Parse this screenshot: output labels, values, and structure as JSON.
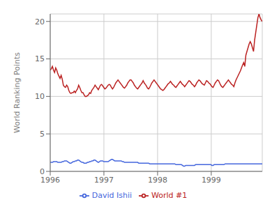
{
  "chart_data": {
    "type": "line",
    "ylabel": "World Ranking Points",
    "xlim": [
      1996.0,
      1999.95
    ],
    "ylim": [
      0,
      21
    ],
    "xticks": [
      1996,
      1997,
      1998,
      1999
    ],
    "yticks": [
      0,
      5,
      10,
      15,
      20
    ],
    "grid": true,
    "legend": "bottom",
    "x": [
      1996,
      1996.0204,
      1996.0407,
      1996.0611,
      1996.0814,
      1996.1018,
      1996.1222,
      1996.1425,
      1996.1629,
      1996.1832,
      1996.2036,
      1996.224,
      1996.2443,
      1996.2647,
      1996.2851,
      1996.3054,
      1996.3258,
      1996.3461,
      1996.3665,
      1996.3869,
      1996.4072,
      1996.4276,
      1996.4479,
      1996.4683,
      1996.4887,
      1996.509,
      1996.5294,
      1996.5497,
      1996.5701,
      1996.5905,
      1996.6108,
      1996.6312,
      1996.6515,
      1996.6719,
      1996.6923,
      1996.7126,
      1996.733,
      1996.7534,
      1996.7737,
      1996.7941,
      1996.8144,
      1996.8348,
      1996.8552,
      1996.8755,
      1996.8959,
      1996.9162,
      1996.9366,
      1996.957,
      1996.9773,
      1996.9977,
      1997.018,
      1997.0384,
      1997.0588,
      1997.0791,
      1997.0995,
      1997.1198,
      1997.1402,
      1997.1606,
      1997.1809,
      1997.2013,
      1997.2216,
      1997.242,
      1997.2624,
      1997.2827,
      1997.3031,
      1997.3235,
      1997.3438,
      1997.3642,
      1997.3845,
      1997.4049,
      1997.4253,
      1997.4456,
      1997.466,
      1997.4863,
      1997.5067,
      1997.5271,
      1997.5474,
      1997.5678,
      1997.5881,
      1997.6085,
      1997.6289,
      1997.6492,
      1997.6696,
      1997.6899,
      1997.7103,
      1997.7307,
      1997.751,
      1997.7714,
      1997.7918,
      1997.8121,
      1997.8325,
      1997.8528,
      1997.8732,
      1997.8936,
      1997.9139,
      1997.9343,
      1997.9546,
      1997.975,
      1997.9954,
      1998.0157,
      1998.0361,
      1998.0564,
      1998.0768,
      1998.0972,
      1998.1175,
      1998.1379,
      1998.1582,
      1998.1786,
      1998.199,
      1998.2193,
      1998.2397,
      1998.2601,
      1998.2804,
      1998.3008,
      1998.3211,
      1998.3415,
      1998.3619,
      1998.3822,
      1998.4026,
      1998.4229,
      1998.4433,
      1998.4637,
      1998.484,
      1998.5044,
      1998.5247,
      1998.5451,
      1998.5655,
      1998.5858,
      1998.6062,
      1998.6265,
      1998.6469,
      1998.6673,
      1998.6876,
      1998.708,
      1998.7284,
      1998.7487,
      1998.7691,
      1998.7894,
      1998.8098,
      1998.8302,
      1998.8505,
      1998.8709,
      1998.8912,
      1998.9116,
      1998.932,
      1998.9523,
      1998.9727,
      1998.993,
      1999.0134,
      1999.0338,
      1999.0541,
      1999.0745,
      1999.0948,
      1999.1152,
      1999.1356,
      1999.1559,
      1999.1763,
      1999.1966,
      1999.217,
      1999.2374,
      1999.2577,
      1999.2781,
      1999.2985,
      1999.3188,
      1999.3392,
      1999.3595,
      1999.3799,
      1999.4003,
      1999.4206,
      1999.441,
      1999.4613,
      1999.4817,
      1999.5021,
      1999.5224,
      1999.5428,
      1999.5631,
      1999.5835,
      1999.6039,
      1999.6242,
      1999.6446,
      1999.6649,
      1999.6853,
      1999.7057,
      1999.726,
      1999.7464,
      1999.7668,
      1999.7871,
      1999.8075,
      1999.8278,
      1999.8482,
      1999.8686,
      1999.8889,
      1999.9093,
      1999.9296,
      1999.95
    ],
    "series": [
      {
        "name": "David Ishii",
        "color": "#4466dd",
        "values": [
          1.2,
          1.2,
          1.2,
          1.3,
          1.3,
          1.3,
          1.3,
          1.2,
          1.2,
          1.2,
          1.2,
          1.3,
          1.3,
          1.4,
          1.4,
          1.4,
          1.3,
          1.2,
          1.1,
          1.1,
          1.2,
          1.3,
          1.3,
          1.4,
          1.4,
          1.5,
          1.5,
          1.4,
          1.3,
          1.2,
          1.2,
          1.1,
          1.1,
          1.1,
          1.2,
          1.2,
          1.3,
          1.3,
          1.4,
          1.4,
          1.5,
          1.5,
          1.4,
          1.3,
          1.2,
          1.3,
          1.4,
          1.4,
          1.4,
          1.3,
          1.3,
          1.3,
          1.3,
          1.3,
          1.4,
          1.5,
          1.6,
          1.6,
          1.5,
          1.4,
          1.4,
          1.4,
          1.4,
          1.4,
          1.4,
          1.4,
          1.3,
          1.3,
          1.2,
          1.2,
          1.2,
          1.2,
          1.2,
          1.2,
          1.2,
          1.2,
          1.2,
          1.2,
          1.2,
          1.2,
          1.2,
          1.1,
          1.1,
          1.1,
          1.1,
          1.1,
          1.1,
          1.1,
          1.1,
          1.1,
          1.1,
          1.0,
          1.0,
          1.0,
          1.0,
          1.0,
          1.0,
          1.0,
          1.0,
          1.0,
          1.0,
          1.0,
          1.0,
          1.0,
          1.0,
          1.0,
          1.0,
          1.0,
          1.0,
          1.0,
          1.0,
          1.0,
          1.0,
          1.0,
          1.0,
          0.9,
          0.9,
          0.9,
          0.9,
          0.9,
          0.9,
          0.8,
          0.7,
          0.7,
          0.8,
          0.8,
          0.8,
          0.8,
          0.8,
          0.8,
          0.8,
          0.8,
          0.8,
          0.9,
          0.9,
          0.9,
          0.9,
          0.9,
          0.9,
          0.9,
          0.9,
          0.9,
          0.9,
          0.9,
          0.9,
          0.9,
          0.9,
          0.9,
          0.8,
          0.8,
          0.9,
          0.9,
          0.9,
          0.9,
          0.9,
          0.9,
          0.9,
          0.9,
          0.9,
          0.9,
          1.0,
          1.0,
          1.0,
          1.0,
          1.0,
          1.0,
          1.0,
          1.0,
          1.0,
          1.0,
          1.0,
          1.0,
          1.0,
          1.0,
          1.0,
          1.0,
          1.0,
          1.0,
          1.0,
          1.0,
          1.0,
          1.0,
          1.0,
          1.0,
          1.0,
          1.0,
          1.0,
          1.0,
          1.0,
          1.0,
          1.0,
          1.0,
          1.0,
          1.0,
          1.0
        ]
      },
      {
        "name": "World #1",
        "color": "#bb2222",
        "values": [
          13.5,
          13.7,
          14.0,
          13.5,
          13.2,
          13.8,
          13.5,
          13.0,
          12.7,
          12.4,
          12.8,
          12.3,
          11.5,
          11.3,
          11.2,
          11.5,
          11.3,
          10.8,
          10.5,
          10.4,
          10.5,
          10.5,
          10.7,
          10.5,
          10.8,
          11.0,
          11.5,
          11.2,
          10.8,
          10.5,
          10.5,
          10.2,
          10.0,
          10.0,
          10.1,
          10.2,
          10.5,
          10.4,
          10.8,
          11.0,
          11.2,
          11.5,
          11.3,
          11.1,
          10.9,
          11.2,
          11.5,
          11.6,
          11.4,
          11.2,
          11.0,
          11.1,
          11.3,
          11.5,
          11.6,
          11.5,
          11.2,
          11.0,
          11.2,
          11.5,
          11.8,
          12.0,
          12.2,
          12.0,
          11.8,
          11.6,
          11.4,
          11.2,
          11.1,
          11.3,
          11.5,
          11.8,
          12.0,
          12.2,
          12.2,
          12.0,
          11.8,
          11.5,
          11.3,
          11.1,
          11.0,
          11.2,
          11.4,
          11.6,
          11.8,
          12.1,
          11.8,
          11.6,
          11.4,
          11.1,
          11.0,
          11.2,
          11.5,
          11.8,
          12.0,
          12.2,
          12.0,
          11.8,
          11.6,
          11.4,
          11.2,
          11.0,
          10.9,
          10.8,
          10.9,
          11.1,
          11.3,
          11.5,
          11.7,
          11.8,
          12.0,
          11.8,
          11.6,
          11.5,
          11.3,
          11.2,
          11.4,
          11.6,
          11.8,
          12.0,
          11.8,
          11.6,
          11.5,
          11.3,
          11.5,
          11.7,
          11.9,
          12.1,
          12.0,
          11.8,
          11.6,
          11.5,
          11.3,
          11.5,
          11.8,
          12.0,
          12.2,
          12.1,
          11.9,
          11.7,
          11.6,
          11.5,
          11.8,
          12.1,
          12.0,
          11.8,
          11.7,
          11.5,
          11.3,
          11.2,
          11.5,
          11.8,
          12.0,
          12.2,
          12.1,
          11.8,
          11.5,
          11.3,
          11.2,
          11.4,
          11.6,
          11.8,
          12.0,
          12.2,
          12.0,
          11.8,
          11.6,
          11.5,
          11.3,
          11.8,
          12.2,
          12.5,
          12.8,
          13.1,
          13.4,
          13.8,
          14.2,
          14.5,
          14.0,
          15.5,
          16.0,
          16.5,
          17.0,
          17.3,
          17.0,
          16.5,
          16.0,
          17.5,
          18.5,
          19.5,
          20.5,
          21.0,
          20.5,
          20.2,
          20.0
        ]
      }
    ]
  }
}
